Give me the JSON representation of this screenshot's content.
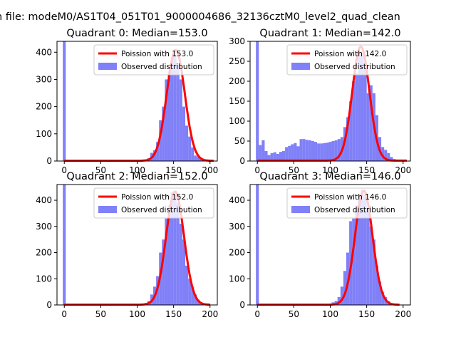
{
  "figure": {
    "title": "n file: modeM0/AS1T04_051T01_9000004686_32136cztM0_level2_quad_clean"
  },
  "colors": {
    "hist_fill": "#8080f8",
    "poisson_line": "#ff0000",
    "axis": "#000000"
  },
  "chart_data": [
    {
      "type": "bar",
      "title": "Quadrant 0: Median=153.0",
      "xlim": [
        -10,
        210
      ],
      "ylim": [
        0,
        440
      ],
      "xticks": [
        0,
        50,
        100,
        150,
        200
      ],
      "yticks": [
        0,
        100,
        200,
        300,
        400
      ],
      "legend_position": "upper-right",
      "series": [
        {
          "name": "Poission with 153.0",
          "kind": "line",
          "peak_x": 153,
          "peak_y": 407,
          "sigma": 12.4,
          "x_range": [
            0,
            205
          ],
          "baseline": 1
        },
        {
          "name": "Observed distribution",
          "kind": "histogram",
          "bin_width": 4,
          "bins": [
            {
              "x0": -2,
              "y": 440
            },
            {
              "x0": 102,
              "y": 3
            },
            {
              "x0": 106,
              "y": 2
            },
            {
              "x0": 110,
              "y": 4
            },
            {
              "x0": 114,
              "y": 10
            },
            {
              "x0": 118,
              "y": 30
            },
            {
              "x0": 122,
              "y": 40
            },
            {
              "x0": 126,
              "y": 70
            },
            {
              "x0": 130,
              "y": 150
            },
            {
              "x0": 134,
              "y": 200
            },
            {
              "x0": 138,
              "y": 300
            },
            {
              "x0": 142,
              "y": 330
            },
            {
              "x0": 146,
              "y": 380
            },
            {
              "x0": 150,
              "y": 390
            },
            {
              "x0": 154,
              "y": 355
            },
            {
              "x0": 158,
              "y": 300
            },
            {
              "x0": 162,
              "y": 200
            },
            {
              "x0": 166,
              "y": 130
            },
            {
              "x0": 170,
              "y": 90
            },
            {
              "x0": 174,
              "y": 50
            },
            {
              "x0": 178,
              "y": 20
            },
            {
              "x0": 182,
              "y": 15
            },
            {
              "x0": 186,
              "y": 8
            },
            {
              "x0": 190,
              "y": 4
            }
          ]
        }
      ]
    },
    {
      "type": "bar",
      "title": "Quadrant 1: Median=142.0",
      "xlim": [
        -10,
        210
      ],
      "ylim": [
        0,
        300
      ],
      "xticks": [
        0,
        50,
        100,
        150,
        200
      ],
      "yticks": [
        0,
        50,
        100,
        150,
        200,
        250,
        300
      ],
      "legend_position": "upper-right",
      "series": [
        {
          "name": "Poission with 142.0",
          "kind": "line",
          "peak_x": 142,
          "peak_y": 286,
          "sigma": 11.8,
          "x_range": [
            0,
            205
          ],
          "baseline": 1
        },
        {
          "name": "Observed distribution",
          "kind": "histogram",
          "bin_width": 4,
          "bins": [
            {
              "x0": -2,
              "y": 300
            },
            {
              "x0": 2,
              "y": 40
            },
            {
              "x0": 6,
              "y": 52
            },
            {
              "x0": 10,
              "y": 25
            },
            {
              "x0": 14,
              "y": 15
            },
            {
              "x0": 18,
              "y": 20
            },
            {
              "x0": 22,
              "y": 22
            },
            {
              "x0": 26,
              "y": 18
            },
            {
              "x0": 30,
              "y": 23
            },
            {
              "x0": 34,
              "y": 25
            },
            {
              "x0": 38,
              "y": 35
            },
            {
              "x0": 42,
              "y": 38
            },
            {
              "x0": 46,
              "y": 42
            },
            {
              "x0": 50,
              "y": 45
            },
            {
              "x0": 54,
              "y": 37
            },
            {
              "x0": 58,
              "y": 55
            },
            {
              "x0": 62,
              "y": 55
            },
            {
              "x0": 66,
              "y": 53
            },
            {
              "x0": 70,
              "y": 52
            },
            {
              "x0": 74,
              "y": 50
            },
            {
              "x0": 78,
              "y": 48
            },
            {
              "x0": 82,
              "y": 44
            },
            {
              "x0": 86,
              "y": 44
            },
            {
              "x0": 90,
              "y": 45
            },
            {
              "x0": 94,
              "y": 46
            },
            {
              "x0": 98,
              "y": 48
            },
            {
              "x0": 102,
              "y": 50
            },
            {
              "x0": 106,
              "y": 52
            },
            {
              "x0": 110,
              "y": 55
            },
            {
              "x0": 114,
              "y": 60
            },
            {
              "x0": 118,
              "y": 85
            },
            {
              "x0": 122,
              "y": 110
            },
            {
              "x0": 126,
              "y": 150
            },
            {
              "x0": 130,
              "y": 200
            },
            {
              "x0": 134,
              "y": 220
            },
            {
              "x0": 138,
              "y": 270
            },
            {
              "x0": 142,
              "y": 270
            },
            {
              "x0": 146,
              "y": 230
            },
            {
              "x0": 150,
              "y": 170
            },
            {
              "x0": 154,
              "y": 190
            },
            {
              "x0": 158,
              "y": 170
            },
            {
              "x0": 162,
              "y": 115
            },
            {
              "x0": 166,
              "y": 60
            },
            {
              "x0": 170,
              "y": 35
            },
            {
              "x0": 174,
              "y": 28
            },
            {
              "x0": 178,
              "y": 20
            },
            {
              "x0": 182,
              "y": 10
            },
            {
              "x0": 186,
              "y": 5
            }
          ]
        }
      ]
    },
    {
      "type": "bar",
      "title": "Quadrant 2: Median=152.0",
      "xlim": [
        -10,
        210
      ],
      "ylim": [
        0,
        460
      ],
      "xticks": [
        0,
        50,
        100,
        150,
        200
      ],
      "yticks": [
        0,
        100,
        200,
        300,
        400
      ],
      "legend_position": "upper-right",
      "series": [
        {
          "name": "Poission with 152.0",
          "kind": "line",
          "peak_x": 152,
          "peak_y": 432,
          "sigma": 12.3,
          "x_range": [
            0,
            200
          ],
          "baseline": 1
        },
        {
          "name": "Observed distribution",
          "kind": "histogram",
          "bin_width": 4,
          "bins": [
            {
              "x0": -2,
              "y": 460
            },
            {
              "x0": 98,
              "y": 3
            },
            {
              "x0": 102,
              "y": 4
            },
            {
              "x0": 106,
              "y": 3
            },
            {
              "x0": 110,
              "y": 8
            },
            {
              "x0": 114,
              "y": 15
            },
            {
              "x0": 118,
              "y": 40
            },
            {
              "x0": 122,
              "y": 70
            },
            {
              "x0": 126,
              "y": 110
            },
            {
              "x0": 130,
              "y": 200
            },
            {
              "x0": 134,
              "y": 250
            },
            {
              "x0": 138,
              "y": 330
            },
            {
              "x0": 142,
              "y": 380
            },
            {
              "x0": 146,
              "y": 430
            },
            {
              "x0": 150,
              "y": 420
            },
            {
              "x0": 154,
              "y": 390
            },
            {
              "x0": 158,
              "y": 310
            },
            {
              "x0": 162,
              "y": 250
            },
            {
              "x0": 166,
              "y": 150
            },
            {
              "x0": 170,
              "y": 100
            },
            {
              "x0": 174,
              "y": 70
            },
            {
              "x0": 178,
              "y": 40
            },
            {
              "x0": 182,
              "y": 20
            },
            {
              "x0": 186,
              "y": 8
            },
            {
              "x0": 190,
              "y": 4
            }
          ]
        }
      ]
    },
    {
      "type": "bar",
      "title": "Quadrant 3: Median=146.0",
      "xlim": [
        -10,
        210
      ],
      "ylim": [
        0,
        460
      ],
      "xticks": [
        0,
        50,
        100,
        150,
        200
      ],
      "yticks": [
        0,
        100,
        200,
        300,
        400
      ],
      "legend_position": "upper-right",
      "series": [
        {
          "name": "Poission with 146.0",
          "kind": "line",
          "peak_x": 146,
          "peak_y": 436,
          "sigma": 12.0,
          "x_range": [
            0,
            195
          ],
          "baseline": 1
        },
        {
          "name": "Observed distribution",
          "kind": "histogram",
          "bin_width": 4,
          "bins": [
            {
              "x0": -2,
              "y": 460
            },
            {
              "x0": 94,
              "y": 3
            },
            {
              "x0": 98,
              "y": 5
            },
            {
              "x0": 102,
              "y": 10
            },
            {
              "x0": 106,
              "y": 15
            },
            {
              "x0": 110,
              "y": 30
            },
            {
              "x0": 114,
              "y": 70
            },
            {
              "x0": 118,
              "y": 130
            },
            {
              "x0": 122,
              "y": 200
            },
            {
              "x0": 126,
              "y": 320
            },
            {
              "x0": 130,
              "y": 330
            },
            {
              "x0": 134,
              "y": 380
            },
            {
              "x0": 138,
              "y": 420
            },
            {
              "x0": 142,
              "y": 440
            },
            {
              "x0": 146,
              "y": 420
            },
            {
              "x0": 150,
              "y": 370
            },
            {
              "x0": 154,
              "y": 300
            },
            {
              "x0": 158,
              "y": 250
            },
            {
              "x0": 162,
              "y": 150
            },
            {
              "x0": 166,
              "y": 90
            },
            {
              "x0": 170,
              "y": 50
            },
            {
              "x0": 174,
              "y": 30
            },
            {
              "x0": 178,
              "y": 15
            },
            {
              "x0": 182,
              "y": 6
            },
            {
              "x0": 186,
              "y": 3
            }
          ]
        }
      ]
    }
  ]
}
